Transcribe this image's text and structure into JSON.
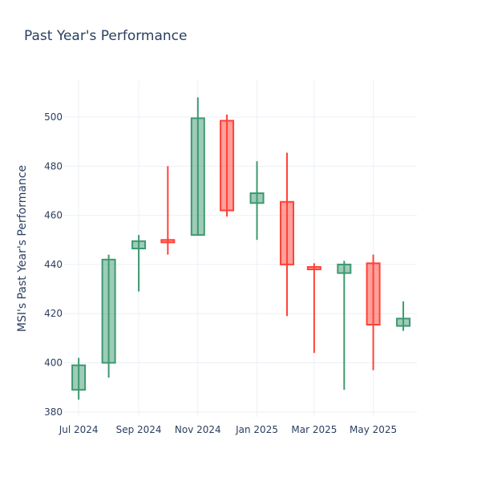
{
  "chart_data": {
    "type": "candlestick",
    "title": "Past Year's Performance",
    "xlabel": "",
    "ylabel": "MSI's Past Year's Performance",
    "ylim": [
      378,
      515
    ],
    "y_ticks": [
      380,
      400,
      420,
      440,
      460,
      480,
      500
    ],
    "x_ticks": [
      {
        "date": "2024-07-01",
        "label": "Jul 2024"
      },
      {
        "date": "2024-09-01",
        "label": "Sep 2024"
      },
      {
        "date": "2024-11-01",
        "label": "Nov 2024"
      },
      {
        "date": "2025-01-01",
        "label": "Jan 2025"
      },
      {
        "date": "2025-03-01",
        "label": "Mar 2025"
      },
      {
        "date": "2025-05-01",
        "label": "May 2025"
      }
    ],
    "xlim": [
      "2024-06-16",
      "2025-06-15"
    ],
    "grid": true,
    "colors": {
      "increasing": "#3d9970",
      "increasing_fill": "rgba(61,153,112,0.5)",
      "decreasing": "#ff4136",
      "decreasing_fill": "rgba(255,65,54,0.5)"
    },
    "candles": [
      {
        "date": "2024-07-01",
        "open": 389,
        "high": 402,
        "low": 385,
        "close": 399
      },
      {
        "date": "2024-08-01",
        "open": 400,
        "high": 444,
        "low": 394,
        "close": 442
      },
      {
        "date": "2024-09-01",
        "open": 446.5,
        "high": 452,
        "low": 429,
        "close": 449.5
      },
      {
        "date": "2024-10-01",
        "open": 450,
        "high": 480,
        "low": 444,
        "close": 449
      },
      {
        "date": "2024-11-01",
        "open": 452,
        "high": 508,
        "low": 452,
        "close": 499.5
      },
      {
        "date": "2024-12-01",
        "open": 498.5,
        "high": 501,
        "low": 459.5,
        "close": 462
      },
      {
        "date": "2025-01-01",
        "open": 465,
        "high": 482,
        "low": 450,
        "close": 469
      },
      {
        "date": "2025-02-01",
        "open": 465.5,
        "high": 485.5,
        "low": 419,
        "close": 440
      },
      {
        "date": "2025-03-01",
        "open": 439,
        "high": 440.5,
        "low": 404,
        "close": 438
      },
      {
        "date": "2025-04-01",
        "open": 436.5,
        "high": 441.5,
        "low": 389,
        "close": 440
      },
      {
        "date": "2025-05-01",
        "open": 440.5,
        "high": 444,
        "low": 397,
        "close": 415.5
      },
      {
        "date": "2025-06-01",
        "open": 415,
        "high": 425,
        "low": 413,
        "close": 418
      }
    ]
  }
}
